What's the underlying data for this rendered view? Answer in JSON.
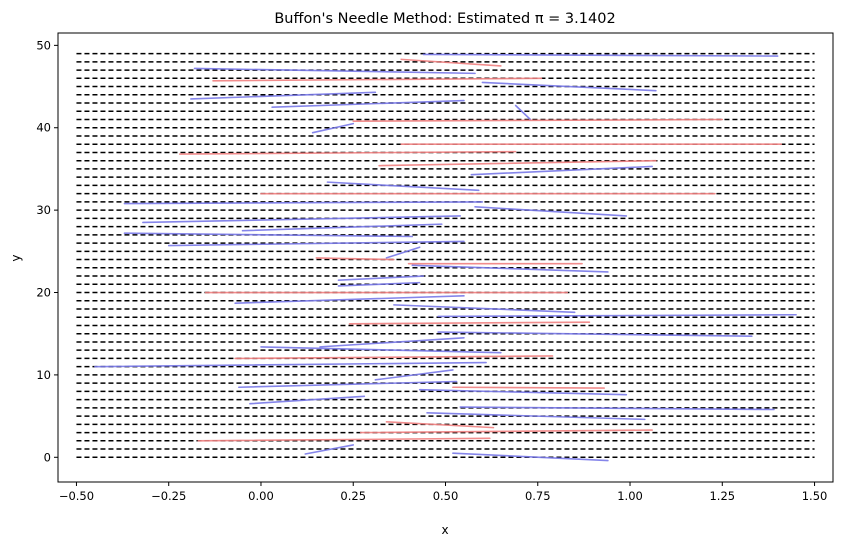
{
  "chart_data": {
    "type": "line",
    "title": "Buffon's Needle Method: Estimated π = 3.1402",
    "xlabel": "x",
    "ylabel": "y",
    "xlim": [
      -0.55,
      1.55
    ],
    "ylim": [
      -3,
      51.5
    ],
    "x_ticks": [
      -0.5,
      -0.25,
      0.0,
      0.25,
      0.5,
      0.75,
      1.0,
      1.25,
      1.5
    ],
    "x_tick_labels": [
      "−0.50",
      "−0.25",
      "0.00",
      "0.25",
      "0.50",
      "0.75",
      "1.00",
      "1.25",
      "1.50"
    ],
    "y_ticks": [
      0,
      10,
      20,
      30,
      40,
      50
    ],
    "y_tick_labels": [
      "0",
      "10",
      "20",
      "30",
      "40",
      "50"
    ],
    "grid": false,
    "reference_lines": {
      "orientation": "horizontal",
      "style": "dashed",
      "color": "#000000",
      "y_values": [
        0,
        1,
        2,
        3,
        4,
        5,
        6,
        7,
        8,
        9,
        10,
        11,
        12,
        13,
        14,
        15,
        16,
        17,
        18,
        19,
        20,
        21,
        22,
        23,
        24,
        25,
        26,
        27,
        28,
        29,
        30,
        31,
        32,
        33,
        34,
        35,
        36,
        37,
        38,
        39,
        40,
        41,
        42,
        43,
        44,
        45,
        46,
        47,
        48,
        49
      ]
    },
    "colors": {
      "crossing": "#7878e8",
      "non_crossing": "#f08080"
    },
    "needles": [
      {
        "x1": 0.44,
        "y1": 48.9,
        "x2": 1.4,
        "y2": 48.7,
        "crosses": true
      },
      {
        "x1": 0.38,
        "y1": 48.3,
        "x2": 0.65,
        "y2": 47.5,
        "crosses": false
      },
      {
        "x1": -0.18,
        "y1": 47.2,
        "x2": 0.58,
        "y2": 46.6,
        "crosses": true
      },
      {
        "x1": -0.13,
        "y1": 45.7,
        "x2": 0.76,
        "y2": 46.0,
        "crosses": false
      },
      {
        "x1": 0.6,
        "y1": 45.5,
        "x2": 1.07,
        "y2": 44.5,
        "crosses": true
      },
      {
        "x1": -0.19,
        "y1": 43.5,
        "x2": 0.31,
        "y2": 44.3,
        "crosses": true
      },
      {
        "x1": 0.03,
        "y1": 42.5,
        "x2": 0.55,
        "y2": 43.3,
        "crosses": true
      },
      {
        "x1": 0.69,
        "y1": 42.7,
        "x2": 0.73,
        "y2": 41.0,
        "crosses": true
      },
      {
        "x1": 0.25,
        "y1": 40.8,
        "x2": 1.25,
        "y2": 41.0,
        "crosses": false
      },
      {
        "x1": 0.14,
        "y1": 39.4,
        "x2": 0.25,
        "y2": 40.5,
        "crosses": true
      },
      {
        "x1": 0.38,
        "y1": 38.0,
        "x2": 1.41,
        "y2": 38.0,
        "crosses": false
      },
      {
        "x1": -0.22,
        "y1": 36.8,
        "x2": 0.69,
        "y2": 37.1,
        "crosses": false
      },
      {
        "x1": 0.32,
        "y1": 35.4,
        "x2": 1.07,
        "y2": 36.0,
        "crosses": false
      },
      {
        "x1": 0.57,
        "y1": 34.3,
        "x2": 1.06,
        "y2": 35.3,
        "crosses": true
      },
      {
        "x1": 0.18,
        "y1": 33.4,
        "x2": 0.59,
        "y2": 32.4,
        "crosses": true
      },
      {
        "x1": 0.0,
        "y1": 32.0,
        "x2": 1.23,
        "y2": 32.0,
        "crosses": false
      },
      {
        "x1": -0.37,
        "y1": 30.8,
        "x2": 0.6,
        "y2": 31.0,
        "crosses": true
      },
      {
        "x1": 0.58,
        "y1": 30.4,
        "x2": 0.99,
        "y2": 29.3,
        "crosses": true
      },
      {
        "x1": -0.32,
        "y1": 28.5,
        "x2": 0.54,
        "y2": 29.3,
        "crosses": true
      },
      {
        "x1": -0.05,
        "y1": 27.5,
        "x2": 0.49,
        "y2": 28.3,
        "crosses": true
      },
      {
        "x1": -0.37,
        "y1": 27.2,
        "x2": 0.41,
        "y2": 26.8,
        "crosses": true
      },
      {
        "x1": -0.25,
        "y1": 25.7,
        "x2": 0.55,
        "y2": 26.2,
        "crosses": true
      },
      {
        "x1": 0.34,
        "y1": 24.2,
        "x2": 0.43,
        "y2": 25.5,
        "crosses": true
      },
      {
        "x1": 0.15,
        "y1": 24.2,
        "x2": 0.36,
        "y2": 24.0,
        "crosses": false
      },
      {
        "x1": 0.4,
        "y1": 23.5,
        "x2": 0.87,
        "y2": 23.5,
        "crosses": false
      },
      {
        "x1": 0.41,
        "y1": 23.3,
        "x2": 0.94,
        "y2": 22.5,
        "crosses": true
      },
      {
        "x1": 0.21,
        "y1": 21.5,
        "x2": 0.44,
        "y2": 22.0,
        "crosses": true
      },
      {
        "x1": 0.21,
        "y1": 20.8,
        "x2": 0.43,
        "y2": 21.2,
        "crosses": true
      },
      {
        "x1": -0.15,
        "y1": 20.0,
        "x2": 0.83,
        "y2": 20.0,
        "crosses": false
      },
      {
        "x1": -0.07,
        "y1": 18.7,
        "x2": 0.55,
        "y2": 19.6,
        "crosses": true
      },
      {
        "x1": 0.36,
        "y1": 18.5,
        "x2": 0.85,
        "y2": 17.6,
        "crosses": true
      },
      {
        "x1": 0.48,
        "y1": 17.1,
        "x2": 1.45,
        "y2": 17.3,
        "crosses": true
      },
      {
        "x1": 0.24,
        "y1": 16.2,
        "x2": 0.89,
        "y2": 16.4,
        "crosses": false
      },
      {
        "x1": 0.48,
        "y1": 15.2,
        "x2": 1.33,
        "y2": 14.7,
        "crosses": true
      },
      {
        "x1": 0.0,
        "y1": 13.4,
        "x2": 0.65,
        "y2": 12.7,
        "crosses": true
      },
      {
        "x1": 0.16,
        "y1": 13.4,
        "x2": 0.55,
        "y2": 14.5,
        "crosses": true
      },
      {
        "x1": -0.07,
        "y1": 12.0,
        "x2": 0.79,
        "y2": 12.3,
        "crosses": false
      },
      {
        "x1": -0.45,
        "y1": 11.0,
        "x2": 0.61,
        "y2": 11.5,
        "crosses": true
      },
      {
        "x1": 0.31,
        "y1": 9.4,
        "x2": 0.52,
        "y2": 10.6,
        "crosses": true
      },
      {
        "x1": -0.06,
        "y1": 8.5,
        "x2": 0.53,
        "y2": 9.2,
        "crosses": true
      },
      {
        "x1": 0.52,
        "y1": 8.5,
        "x2": 0.93,
        "y2": 8.4,
        "crosses": false
      },
      {
        "x1": 0.43,
        "y1": 8.2,
        "x2": 0.99,
        "y2": 7.6,
        "crosses": true
      },
      {
        "x1": -0.03,
        "y1": 6.5,
        "x2": 0.28,
        "y2": 7.4,
        "crosses": true
      },
      {
        "x1": 0.54,
        "y1": 6.1,
        "x2": 1.39,
        "y2": 5.8,
        "crosses": true
      },
      {
        "x1": 0.45,
        "y1": 5.4,
        "x2": 1.04,
        "y2": 4.6,
        "crosses": true
      },
      {
        "x1": 0.34,
        "y1": 4.3,
        "x2": 0.63,
        "y2": 3.6,
        "crosses": false
      },
      {
        "x1": 0.27,
        "y1": 3.0,
        "x2": 1.06,
        "y2": 3.3,
        "crosses": false
      },
      {
        "x1": -0.17,
        "y1": 2.0,
        "x2": 0.62,
        "y2": 2.3,
        "crosses": false
      },
      {
        "x1": 0.12,
        "y1": 0.4,
        "x2": 0.25,
        "y2": 1.5,
        "crosses": true
      },
      {
        "x1": 0.52,
        "y1": 0.5,
        "x2": 0.94,
        "y2": -0.4,
        "crosses": true
      }
    ]
  }
}
